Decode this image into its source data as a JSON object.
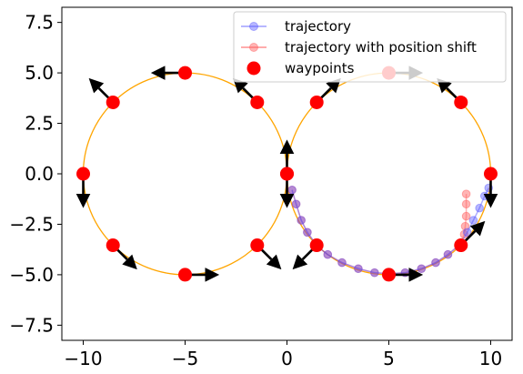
{
  "chart_data": {
    "type": "scatter",
    "title": "",
    "xlabel": "",
    "ylabel": "",
    "xlim": [
      -11.05,
      11.05
    ],
    "ylim": [
      -8.25,
      8.25
    ],
    "xticks": [
      -10,
      -5,
      0,
      5,
      10
    ],
    "xtick_labels": [
      "−10",
      "−5",
      "0",
      "5",
      "10"
    ],
    "yticks": [
      -7.5,
      -5.0,
      -2.5,
      0.0,
      2.5,
      5.0,
      7.5
    ],
    "ytick_labels": [
      "−7.5",
      "−5.0",
      "−2.5",
      "0.0",
      "2.5",
      "5.0",
      "7.5"
    ],
    "grid": false,
    "legend_placement": "upper-right",
    "colors": {
      "trajectory": "#4b4bff",
      "trajectory_shift": "#ff5a5a",
      "waypoints": "#ff0000",
      "reference_circle": "#ffa500",
      "arrows": "#000000"
    },
    "reference_path": {
      "circles": [
        {
          "cx": -5,
          "cy": 0,
          "r": 5
        },
        {
          "cx": 5,
          "cy": 0,
          "r": 5
        }
      ]
    },
    "series": [
      {
        "name": "trajectory",
        "color": "#4b4bff",
        "x": [
          0.25,
          0.45,
          0.7,
          1.0,
          1.5,
          2.0,
          2.7,
          3.5,
          4.3,
          5.0,
          5.8,
          6.6,
          7.3,
          7.9,
          8.5,
          8.85,
          9.15,
          9.45,
          9.7,
          9.9
        ],
        "y": [
          -0.8,
          -1.5,
          -2.3,
          -2.9,
          -3.6,
          -4.0,
          -4.4,
          -4.7,
          -4.9,
          -4.95,
          -4.9,
          -4.7,
          -4.4,
          -4.0,
          -3.5,
          -2.9,
          -2.3,
          -1.7,
          -1.1,
          -0.7
        ]
      },
      {
        "name": "trajectory with position shift",
        "color": "#ff5a5a",
        "x": [
          0.25,
          0.45,
          0.7,
          1.0,
          1.5,
          2.0,
          2.7,
          3.5,
          4.3,
          5.0,
          5.8,
          6.6,
          7.3,
          7.9,
          8.5,
          8.7,
          8.75,
          8.8,
          8.8,
          8.8
        ],
        "y": [
          -0.8,
          -1.5,
          -2.3,
          -2.9,
          -3.6,
          -4.0,
          -4.4,
          -4.7,
          -4.9,
          -4.95,
          -4.9,
          -4.7,
          -4.4,
          -4.0,
          -3.5,
          -3.0,
          -2.6,
          -2.1,
          -1.5,
          -1.0
        ]
      },
      {
        "name": "waypoints",
        "color": "#ff0000",
        "x": [
          0,
          1.46,
          5,
          8.54,
          10,
          8.54,
          5,
          1.46,
          0,
          -1.46,
          -5,
          -8.54,
          -10,
          -8.54,
          -5,
          -1.46
        ],
        "y": [
          0,
          -3.54,
          -5,
          -3.54,
          0,
          3.54,
          5,
          3.54,
          0,
          -3.54,
          -5,
          -3.54,
          0,
          3.54,
          5,
          3.54
        ],
        "heading_deg": [
          -90,
          -135,
          0,
          45,
          -90,
          135,
          0,
          45,
          90,
          -45,
          0,
          -45,
          -90,
          135,
          180,
          135
        ]
      }
    ]
  },
  "legend": {
    "items": [
      {
        "label": "trajectory"
      },
      {
        "label": "trajectory with position shift"
      },
      {
        "label": "waypoints"
      }
    ]
  }
}
